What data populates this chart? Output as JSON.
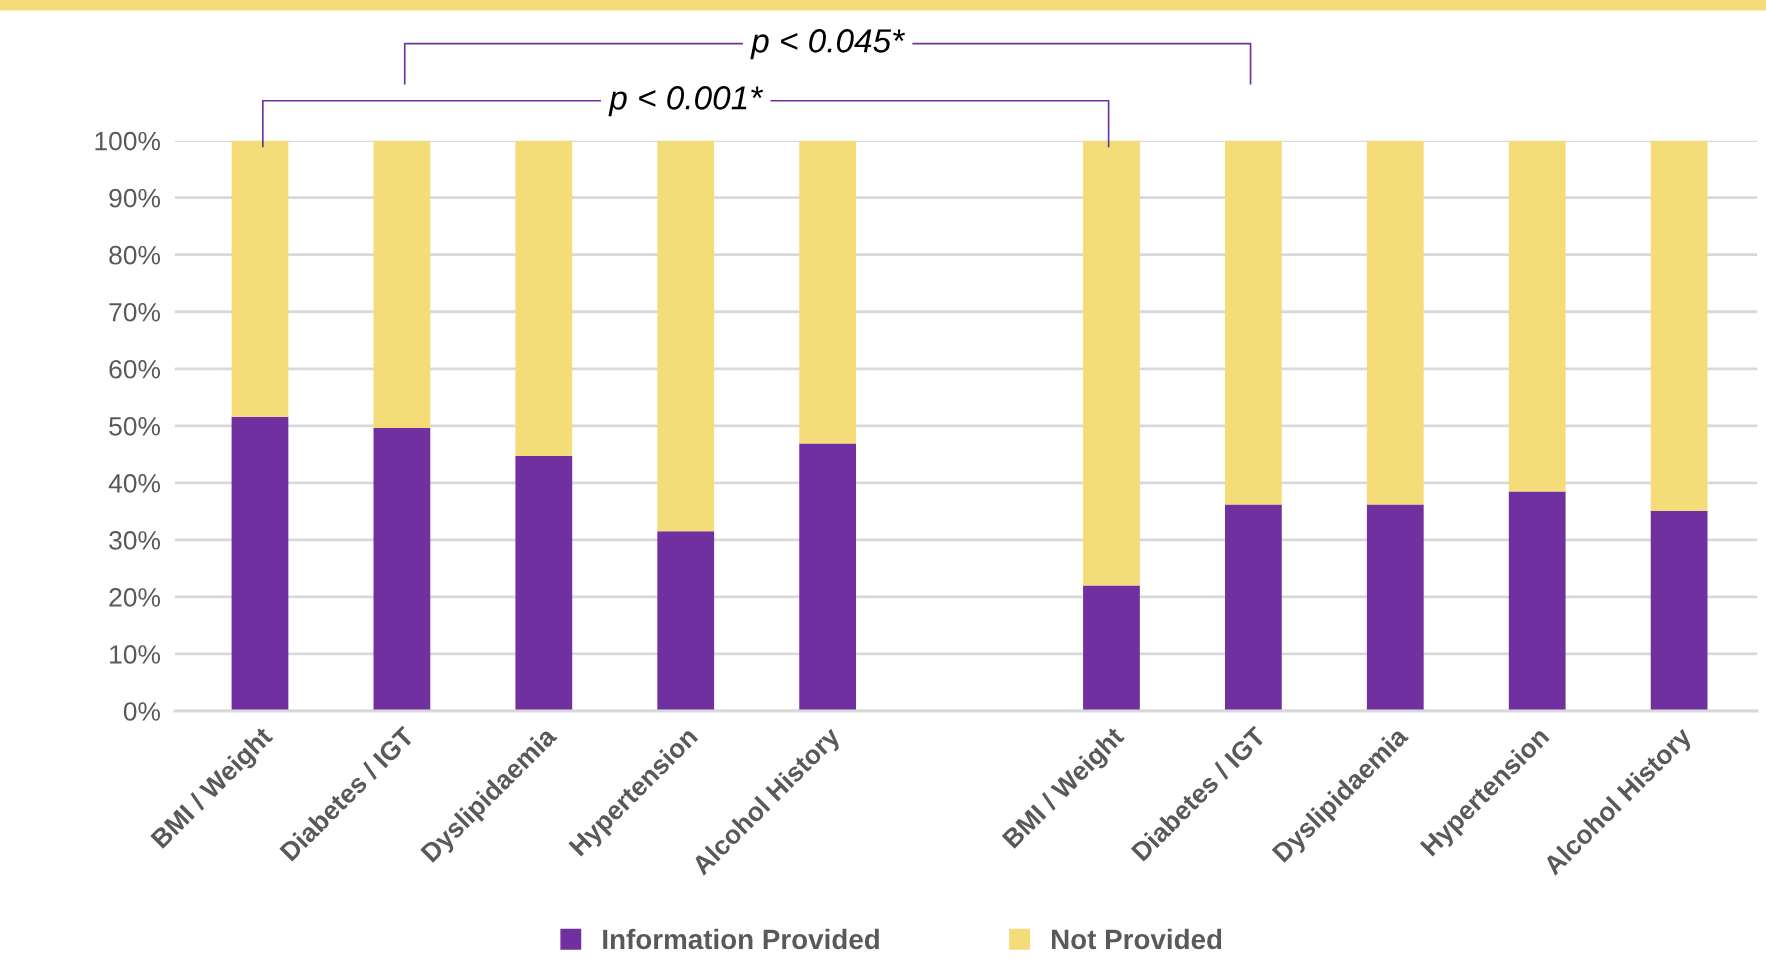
{
  "chart_data": {
    "type": "bar",
    "stacked": true,
    "categories": [
      "BMI / Weight",
      "Diabetes / IGT",
      "Dyslipidaemia",
      "Hypertension",
      "Alcohol History",
      null,
      "BMI / Weight",
      "Diabetes / IGT",
      "Dyslipidaemia",
      "Hypertension",
      "Alcohol History"
    ],
    "series": [
      {
        "name": "Information Provided",
        "color": "#7030a0",
        "values": [
          51.6,
          49.6,
          44.7,
          31.5,
          46.9,
          null,
          22.0,
          36.2,
          36.2,
          38.5,
          35.1
        ]
      },
      {
        "name": "Not Provided",
        "color": "#f4dc78",
        "values": [
          48.4,
          50.4,
          55.3,
          68.5,
          53.1,
          null,
          78.0,
          63.8,
          63.8,
          61.5,
          64.9
        ]
      }
    ],
    "ylim": [
      0,
      100
    ],
    "yticks": [
      {
        "value": 0,
        "label": "0%"
      },
      {
        "value": 10,
        "label": "10%"
      },
      {
        "value": 20,
        "label": "20%"
      },
      {
        "value": 30,
        "label": "30%"
      },
      {
        "value": 40,
        "label": "40%"
      },
      {
        "value": 50,
        "label": "50%"
      },
      {
        "value": 60,
        "label": "60%"
      },
      {
        "value": 70,
        "label": "70%"
      },
      {
        "value": 80,
        "label": "80%"
      },
      {
        "value": 90,
        "label": "90%"
      },
      {
        "value": 100,
        "label": "100%"
      }
    ],
    "grid": "y",
    "legend": "bottom",
    "annotations": [
      "p < 0.001*",
      "p < 0.045*"
    ]
  }
}
